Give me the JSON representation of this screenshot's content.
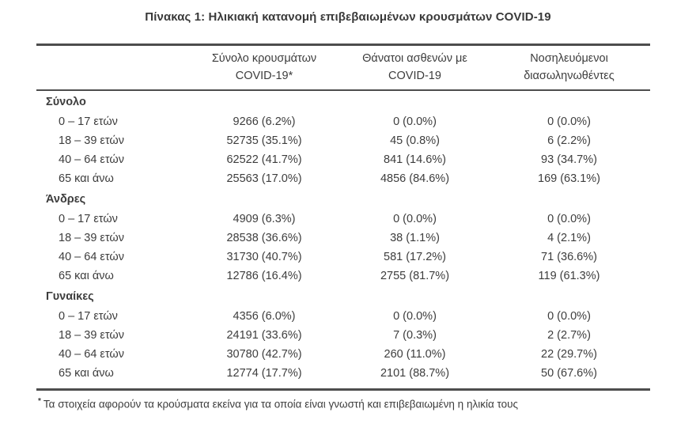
{
  "title": "Πίνακας 1: Ηλικιακή κατανομή επιβεβαιωμένων κρουσμάτων COVID-19",
  "table": {
    "headers": [
      {
        "line1": "Σύνολο κρουσμάτων",
        "line2": "COVID-19*"
      },
      {
        "line1": "Θάνατοι ασθενών με",
        "line2": "COVID-19"
      },
      {
        "line1": "Νοσηλευόμενοι",
        "line2": "διασωληνωθέντες"
      }
    ],
    "sections": [
      {
        "label": "Σύνολο",
        "rows": [
          {
            "age": "0 – 17 ετών",
            "values": [
              "9266 (6.2%)",
              "0 (0.0%)",
              "0 (0.0%)"
            ]
          },
          {
            "age": "18 – 39 ετών",
            "values": [
              "52735 (35.1%)",
              "45 (0.8%)",
              "6 (2.2%)"
            ]
          },
          {
            "age": "40 – 64 ετών",
            "values": [
              "62522 (41.7%)",
              "841 (14.6%)",
              "93 (34.7%)"
            ]
          },
          {
            "age": "65 και άνω",
            "values": [
              "25563 (17.0%)",
              "4856 (84.6%)",
              "169 (63.1%)"
            ]
          }
        ]
      },
      {
        "label": "Άνδρες",
        "rows": [
          {
            "age": "0 – 17 ετών",
            "values": [
              "4909 (6.3%)",
              "0 (0.0%)",
              "0 (0.0%)"
            ]
          },
          {
            "age": "18 – 39 ετών",
            "values": [
              "28538 (36.6%)",
              "38 (1.1%)",
              "4 (2.1%)"
            ]
          },
          {
            "age": "40 – 64 ετών",
            "values": [
              "31730 (40.7%)",
              "581 (17.2%)",
              "71 (36.6%)"
            ]
          },
          {
            "age": "65 και άνω",
            "values": [
              "12786 (16.4%)",
              "2755 (81.7%)",
              "119 (61.3%)"
            ]
          }
        ]
      },
      {
        "label": "Γυναίκες",
        "rows": [
          {
            "age": "0 – 17 ετών",
            "values": [
              "4356 (6.0%)",
              "0 (0.0%)",
              "0 (0.0%)"
            ]
          },
          {
            "age": "18 – 39 ετών",
            "values": [
              "24191 (33.6%)",
              "7 (0.3%)",
              "2 (2.7%)"
            ]
          },
          {
            "age": "40 – 64 ετών",
            "values": [
              "30780 (42.7%)",
              "260 (11.0%)",
              "22 (29.7%)"
            ]
          },
          {
            "age": "65 και άνω",
            "values": [
              "12774 (17.7%)",
              "2101 (88.7%)",
              "50 (67.6%)"
            ]
          }
        ]
      }
    ]
  },
  "footnote": {
    "marker": "*",
    "text": "Τα στοιχεία αφορούν τα κρούσματα εκείνα για τα οποία είναι γνωστή και επιβεβαιωμένη η ηλικία τους"
  },
  "colors": {
    "text": "#3d3d3d",
    "rule": "#4d4d4d",
    "background": "#ffffff"
  }
}
